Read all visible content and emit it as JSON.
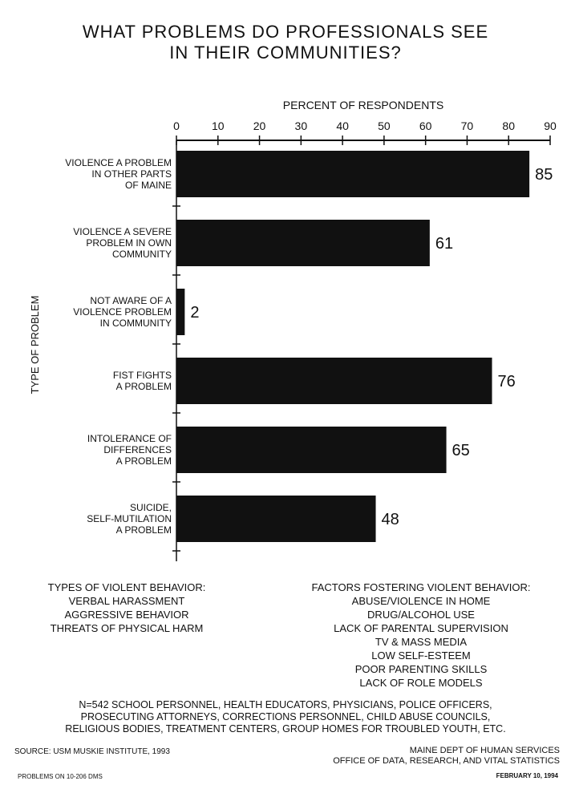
{
  "page": {
    "title_lines": [
      "WHAT PROBLEMS DO PROFESSIONALS SEE",
      "IN THEIR COMMUNITIES?"
    ]
  },
  "chart_data": {
    "type": "bar",
    "orientation": "horizontal",
    "title": "WHAT PROBLEMS DO PROFESSIONALS SEE IN THEIR COMMUNITIES?",
    "xlabel": "PERCENT OF RESPONDENTS",
    "ylabel": "TYPE OF PROBLEM",
    "xlim": [
      0,
      90
    ],
    "ticks": [
      0,
      10,
      20,
      30,
      40,
      50,
      60,
      70,
      80,
      90
    ],
    "axis_position": "top",
    "bar_color": "#111111",
    "categories": [
      [
        "VIOLENCE A PROBLEM",
        "IN OTHER PARTS",
        "OF MAINE"
      ],
      [
        "VIOLENCE A SEVERE",
        "PROBLEM IN OWN",
        "COMMUNITY"
      ],
      [
        "NOT AWARE OF A",
        "VIOLENCE PROBLEM",
        "IN COMMUNITY"
      ],
      [
        "FIST FIGHTS",
        "A PROBLEM"
      ],
      [
        "INTOLERANCE OF",
        "DIFFERENCES",
        "A PROBLEM"
      ],
      [
        "SUICIDE,",
        "SELF-MUTILATION",
        "A PROBLEM"
      ]
    ],
    "values": [
      85,
      61,
      2,
      76,
      65,
      48
    ],
    "data_labels": [
      "85",
      "61",
      "2",
      "76",
      "65",
      "48"
    ]
  },
  "lists": {
    "types": {
      "heading": "TYPES OF VIOLENT BEHAVIOR:",
      "items": [
        "VERBAL HARASSMENT",
        "AGGRESSIVE BEHAVIOR",
        "THREATS OF PHYSICAL HARM"
      ]
    },
    "factors": {
      "heading": "FACTORS FOSTERING VIOLENT BEHAVIOR:",
      "items": [
        "ABUSE/VIOLENCE IN HOME",
        "DRUG/ALCOHOL USE",
        "LACK OF PARENTAL SUPERVISION",
        "TV & MASS MEDIA",
        "LOW SELF-ESTEEM",
        "POOR PARENTING SKILLS",
        "LACK OF ROLE MODELS"
      ]
    }
  },
  "footnote_lines": [
    "N=542 SCHOOL PERSONNEL, HEALTH EDUCATORS, PHYSICIANS, POLICE OFFICERS,",
    "PROSECUTING ATTORNEYS, CORRECTIONS PERSONNEL, CHILD ABUSE COUNCILS,",
    "RELIGIOUS BODIES, TREATMENT CENTERS, GROUP HOMES FOR TROUBLED YOUTH, ETC."
  ],
  "source": {
    "left": "SOURCE: USM MUSKIE INSTITUTE, 1993",
    "right_lines": [
      "MAINE DEPT OF HUMAN SERVICES",
      "OFFICE OF DATA, RESEARCH, AND VITAL STATISTICS"
    ],
    "code": "PROBLEMS ON 10-206 DMS",
    "date": "FEBRUARY 10, 1994"
  }
}
